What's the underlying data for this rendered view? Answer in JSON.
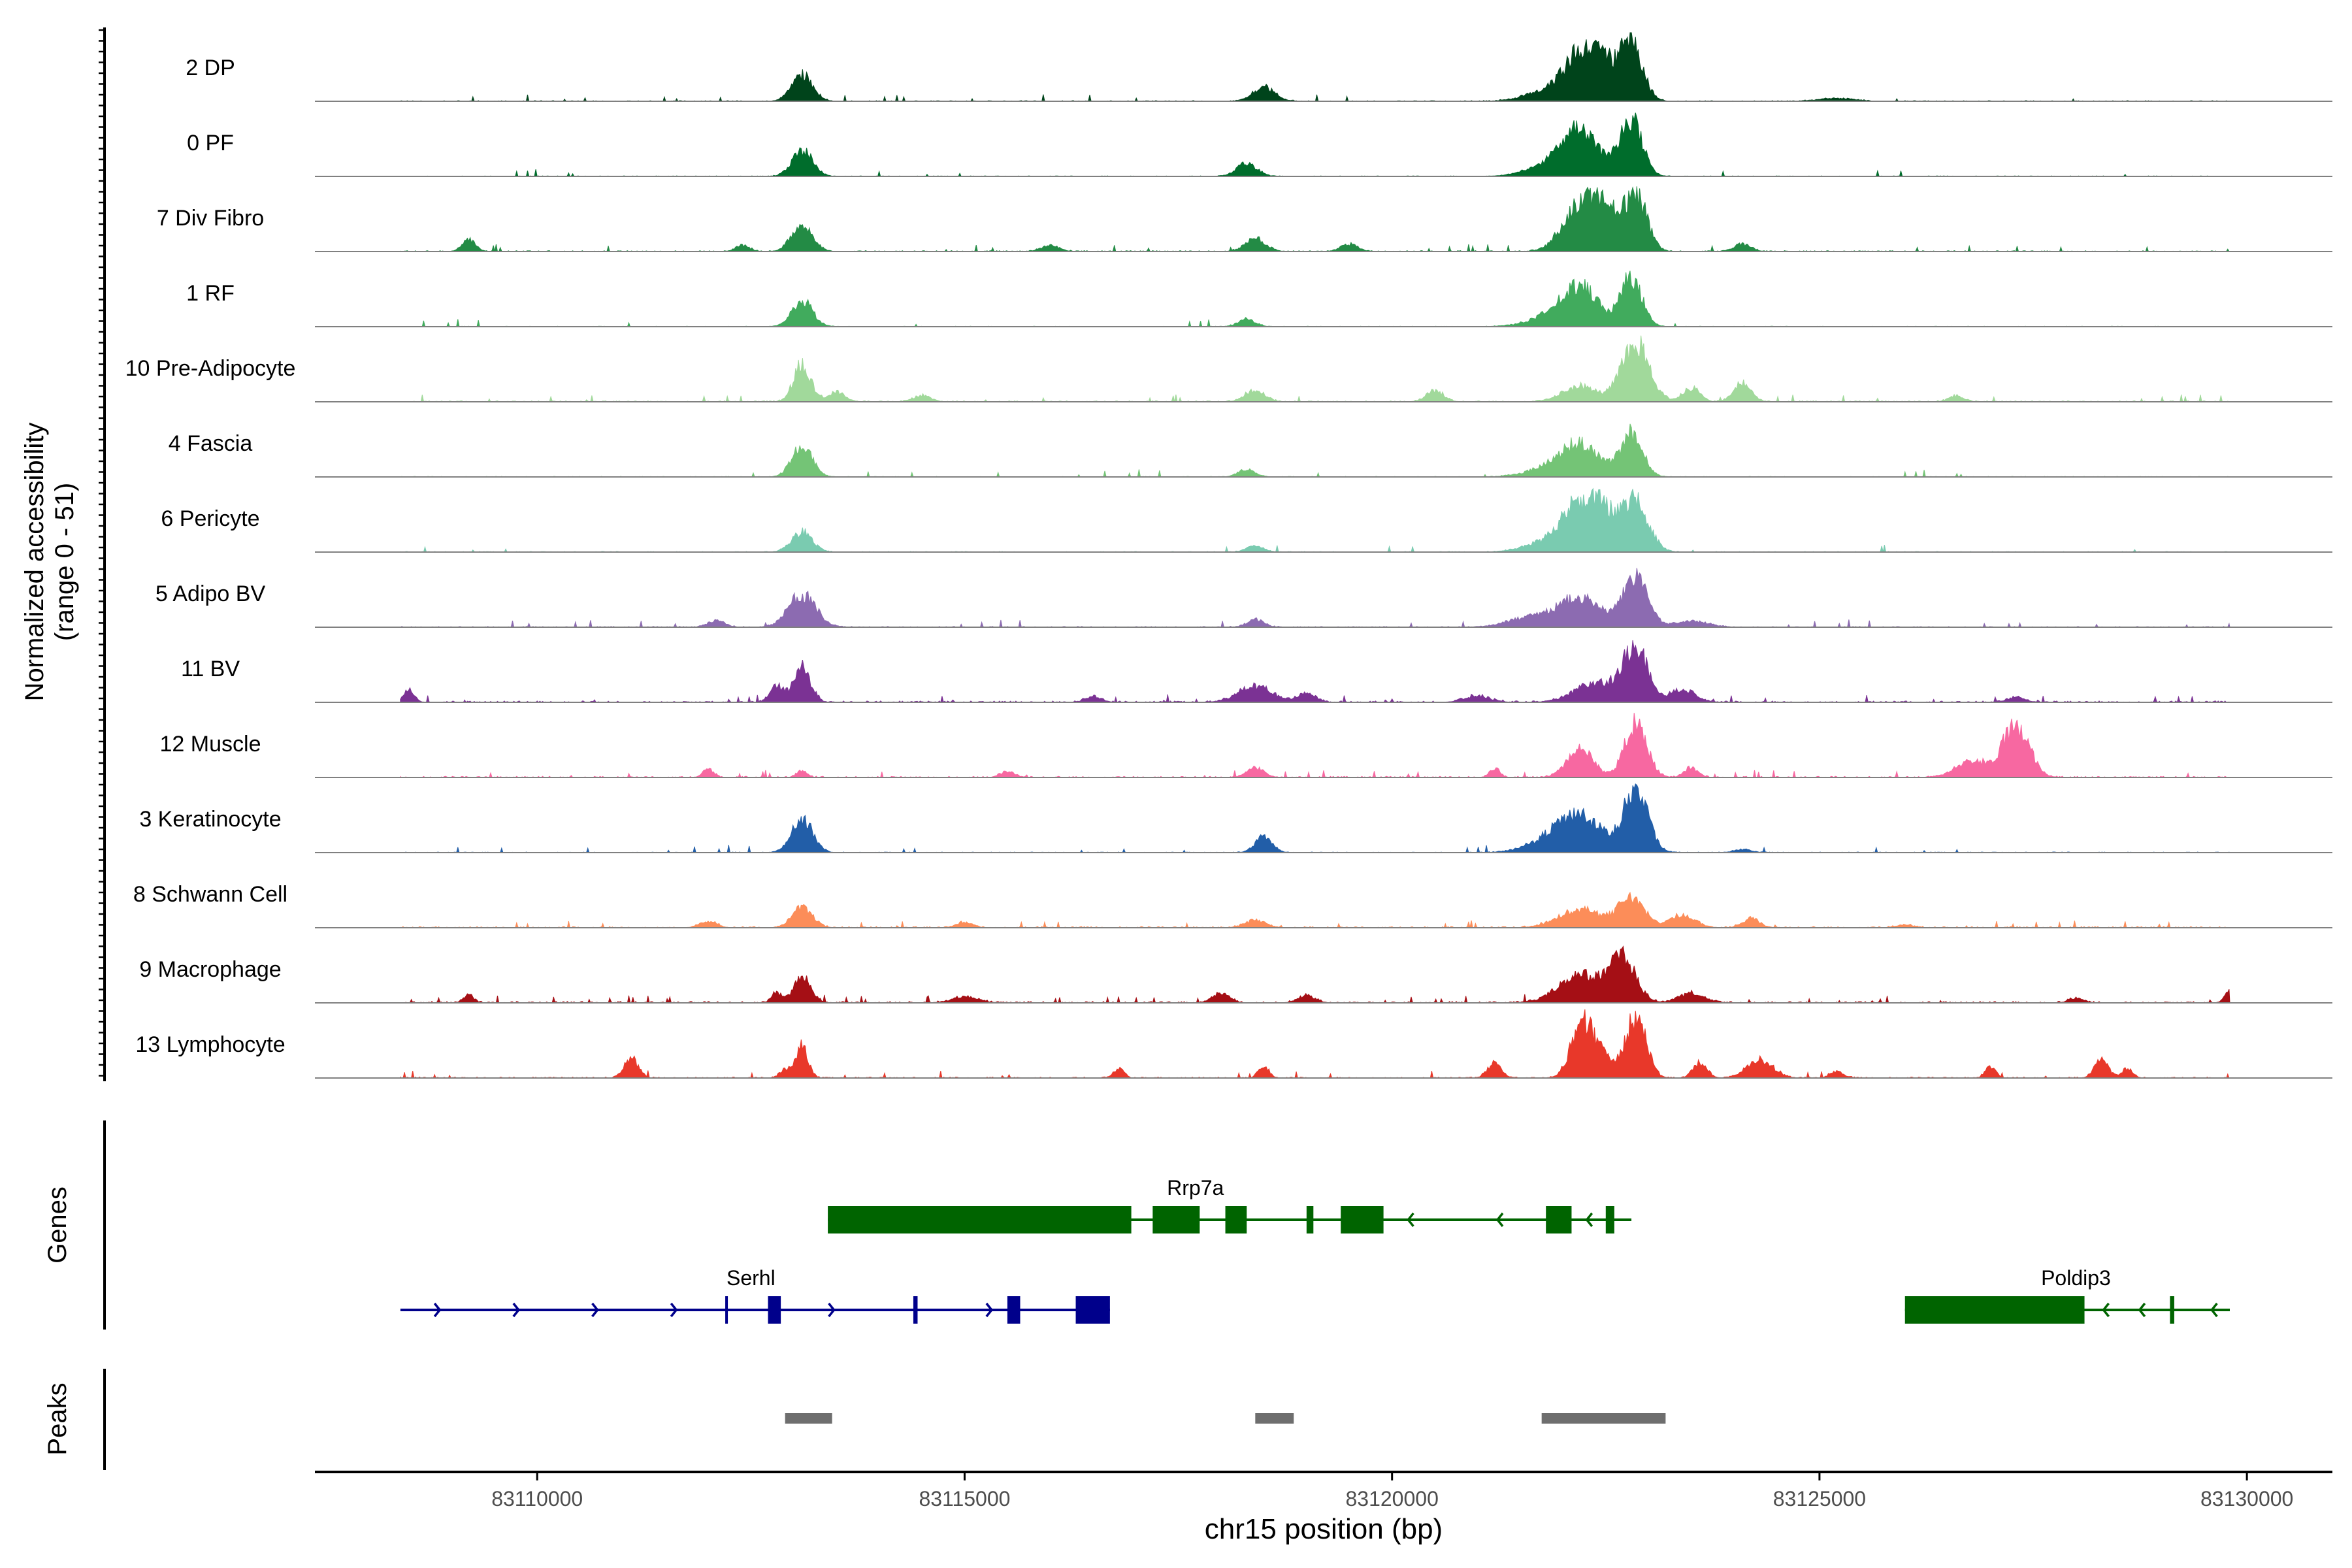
{
  "chart_data": {
    "type": "coverage-track",
    "region": "chr15",
    "xlabel": "chr15 position (bp)",
    "ylabel": "Normalized accessibility",
    "ylabel_range": "(range 0 - 51)",
    "ylim": [
      0,
      51
    ],
    "xlim": [
      83107400,
      83131000
    ],
    "xticks": [
      83110000,
      83115000,
      83120000,
      83125000,
      83130000
    ],
    "xtick_labels": [
      "83110000",
      "83115000",
      "83120000",
      "83125000",
      "83130000"
    ],
    "tracks": [
      {
        "name": "2 DP",
        "color": "#00441b",
        "noise": 0.9,
        "peaks": [
          [
            83113100,
            120,
            0.42
          ],
          [
            83118500,
            130,
            0.22
          ],
          [
            83122200,
            200,
            0.62
          ],
          [
            83122450,
            180,
            0.5
          ],
          [
            83122800,
            130,
            0.9
          ],
          [
            83121800,
            250,
            0.15
          ],
          [
            83125200,
            200,
            0.05
          ]
        ]
      },
      {
        "name": "0 PF",
        "color": "#006d2c",
        "noise": 0.7,
        "peaks": [
          [
            83113100,
            120,
            0.42
          ],
          [
            83118300,
            120,
            0.2
          ],
          [
            83122200,
            220,
            0.72
          ],
          [
            83122800,
            130,
            0.9
          ],
          [
            83121800,
            250,
            0.15
          ]
        ]
      },
      {
        "name": "7 Div Fibro",
        "color": "#238b45",
        "noise": 1.2,
        "peaks": [
          [
            83109200,
            80,
            0.18
          ],
          [
            83113100,
            120,
            0.45
          ],
          [
            83112400,
            80,
            0.1
          ],
          [
            83118400,
            120,
            0.2
          ],
          [
            83119500,
            100,
            0.12
          ],
          [
            83122200,
            200,
            0.72
          ],
          [
            83122500,
            150,
            0.55
          ],
          [
            83122850,
            130,
            0.9
          ],
          [
            83124100,
            100,
            0.12
          ],
          [
            83116000,
            100,
            0.1
          ]
        ]
      },
      {
        "name": "1 RF",
        "color": "#41ab5d",
        "noise": 0.6,
        "peaks": [
          [
            83113100,
            120,
            0.42
          ],
          [
            83118300,
            100,
            0.12
          ],
          [
            83122200,
            220,
            0.62
          ],
          [
            83122800,
            120,
            0.8
          ],
          [
            83121800,
            250,
            0.12
          ]
        ]
      },
      {
        "name": "10 Pre-Adipocyte",
        "color": "#a1d99b",
        "noise": 1.3,
        "peaks": [
          [
            83113100,
            100,
            0.6
          ],
          [
            83113500,
            100,
            0.15
          ],
          [
            83118400,
            120,
            0.18
          ],
          [
            83120500,
            100,
            0.18
          ],
          [
            83122200,
            200,
            0.25
          ],
          [
            83122850,
            160,
            0.95
          ],
          [
            83123500,
            100,
            0.22
          ],
          [
            83124100,
            100,
            0.3
          ],
          [
            83126600,
            90,
            0.1
          ],
          [
            83114500,
            100,
            0.1
          ]
        ]
      },
      {
        "name": "4 Fascia",
        "color": "#74c476",
        "noise": 0.7,
        "peaks": [
          [
            83113100,
            120,
            0.48
          ],
          [
            83118300,
            100,
            0.12
          ],
          [
            83122200,
            220,
            0.52
          ],
          [
            83122800,
            130,
            0.7
          ],
          [
            83121800,
            250,
            0.12
          ]
        ]
      },
      {
        "name": "6 Pericyte",
        "color": "#7acbb0",
        "noise": 0.8,
        "peaks": [
          [
            83113100,
            120,
            0.32
          ],
          [
            83118400,
            100,
            0.1
          ],
          [
            83122200,
            200,
            0.75
          ],
          [
            83122500,
            150,
            0.45
          ],
          [
            83122850,
            150,
            0.8
          ],
          [
            83121800,
            250,
            0.15
          ]
        ]
      },
      {
        "name": "5 Adipo BV",
        "color": "#8c6bb1",
        "noise": 1.0,
        "peaks": [
          [
            83113100,
            160,
            0.52
          ],
          [
            83112100,
            100,
            0.1
          ],
          [
            83118400,
            100,
            0.12
          ],
          [
            83122200,
            250,
            0.48
          ],
          [
            83122850,
            140,
            0.85
          ],
          [
            83121600,
            250,
            0.15
          ],
          [
            83123500,
            200,
            0.1
          ]
        ]
      },
      {
        "name": "11 BV",
        "color": "#7b3294",
        "noise": 1.8,
        "peaks": [
          [
            83108500,
            60,
            0.2
          ],
          [
            83113100,
            100,
            0.55
          ],
          [
            83112800,
            80,
            0.25
          ],
          [
            83118400,
            200,
            0.25
          ],
          [
            83119000,
            100,
            0.15
          ],
          [
            83122400,
            250,
            0.32
          ],
          [
            83122850,
            140,
            0.85
          ],
          [
            83123400,
            150,
            0.2
          ],
          [
            83116500,
            100,
            0.08
          ],
          [
            83121000,
            150,
            0.1
          ],
          [
            83127300,
            100,
            0.08
          ]
        ]
      },
      {
        "name": "12 Muscle",
        "color": "#f768a1",
        "noise": 1.5,
        "peaks": [
          [
            83112000,
            60,
            0.15
          ],
          [
            83113100,
            60,
            0.1
          ],
          [
            83118400,
            100,
            0.15
          ],
          [
            83121200,
            60,
            0.15
          ],
          [
            83122200,
            150,
            0.45
          ],
          [
            83122850,
            130,
            0.85
          ],
          [
            83123500,
            80,
            0.15
          ],
          [
            83126800,
            200,
            0.25
          ],
          [
            83127300,
            150,
            0.85
          ],
          [
            83115500,
            80,
            0.1
          ]
        ]
      },
      {
        "name": "3 Keratinocyte",
        "color": "#225ea8",
        "noise": 0.8,
        "peaks": [
          [
            83113100,
            120,
            0.55
          ],
          [
            83118500,
            100,
            0.25
          ],
          [
            83122200,
            250,
            0.6
          ],
          [
            83122850,
            140,
            1.0
          ],
          [
            83121800,
            250,
            0.15
          ],
          [
            83124100,
            100,
            0.05
          ]
        ]
      },
      {
        "name": "8 Schwann Cell",
        "color": "#fc8d59",
        "noise": 1.5,
        "peaks": [
          [
            83113100,
            120,
            0.32
          ],
          [
            83112000,
            100,
            0.1
          ],
          [
            83118400,
            120,
            0.12
          ],
          [
            83122200,
            250,
            0.3
          ],
          [
            83122800,
            150,
            0.45
          ],
          [
            83123400,
            150,
            0.2
          ],
          [
            83124200,
            100,
            0.15
          ],
          [
            83115000,
            100,
            0.08
          ],
          [
            83126000,
            100,
            0.05
          ]
        ]
      },
      {
        "name": "9 Macrophage",
        "color": "#a50f15",
        "noise": 1.8,
        "peaks": [
          [
            83109200,
            60,
            0.12
          ],
          [
            83113100,
            100,
            0.42
          ],
          [
            83112800,
            60,
            0.15
          ],
          [
            83118000,
            100,
            0.15
          ],
          [
            83119000,
            100,
            0.12
          ],
          [
            83122200,
            250,
            0.45
          ],
          [
            83122700,
            150,
            0.7
          ],
          [
            83123500,
            150,
            0.15
          ],
          [
            83129800,
            60,
            0.18
          ],
          [
            83115000,
            150,
            0.1
          ],
          [
            83128000,
            80,
            0.08
          ]
        ]
      },
      {
        "name": "13 Lymphocyte",
        "color": "#e8382a",
        "noise": 1.3,
        "peaks": [
          [
            83111100,
            80,
            0.32
          ],
          [
            83112900,
            60,
            0.15
          ],
          [
            83113100,
            70,
            0.52
          ],
          [
            83116800,
            60,
            0.15
          ],
          [
            83118500,
            60,
            0.2
          ],
          [
            83121200,
            80,
            0.25
          ],
          [
            83122200,
            120,
            0.7
          ],
          [
            83122400,
            150,
            0.45
          ],
          [
            83122850,
            120,
            1.0
          ],
          [
            83123600,
            80,
            0.25
          ],
          [
            83124300,
            150,
            0.3
          ],
          [
            83125200,
            80,
            0.1
          ],
          [
            83127000,
            60,
            0.18
          ],
          [
            83128300,
            80,
            0.3
          ],
          [
            83128600,
            60,
            0.15
          ]
        ]
      }
    ],
    "genes": {
      "label": "Genes",
      "items": [
        {
          "name": "Rrp7a",
          "strand": "-",
          "start": 83113400,
          "end": 83122800,
          "color": "#006400",
          "exons": [
            [
              83113400,
              83116950
            ],
            [
              83117200,
              83117750
            ],
            [
              83118050,
              83118300
            ],
            [
              83119000,
              83119080
            ],
            [
              83119400,
              83119900
            ],
            [
              83121800,
              83122100
            ],
            [
              83122500,
              83122600
            ]
          ]
        },
        {
          "name": "Serhl",
          "strand": "+",
          "start": 83108400,
          "end": 83116700,
          "color": "#00008b",
          "exons": [
            [
              83112200,
              83112230
            ],
            [
              83112700,
              83112850
            ],
            [
              83114400,
              83114450
            ],
            [
              83115500,
              83115650
            ],
            [
              83116300,
              83116700
            ]
          ]
        },
        {
          "name": "Poldip3",
          "strand": "-",
          "start": 83126000,
          "end": 83129800,
          "color": "#006400",
          "exons": [
            [
              83126000,
              83128100
            ],
            [
              83129100,
              83129150
            ]
          ]
        }
      ]
    },
    "peaks": {
      "label": "Peaks",
      "color": "#6e6e6e",
      "regions": [
        [
          83112900,
          83113450
        ],
        [
          83118400,
          83118850
        ],
        [
          83121750,
          83123200
        ]
      ]
    }
  }
}
